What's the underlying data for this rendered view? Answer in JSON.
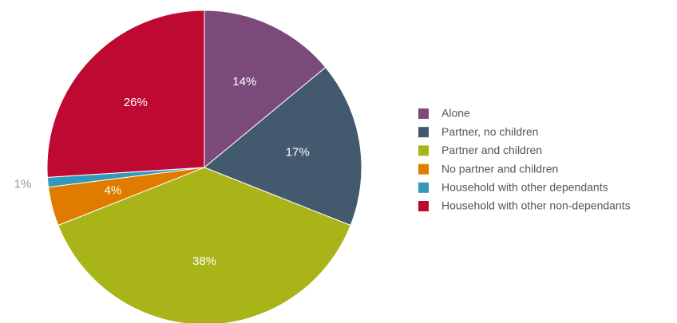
{
  "chart_data": {
    "type": "pie",
    "categories": [
      "Alone",
      "Partner, no children",
      "Partner and children",
      "No partner and children",
      "Household with other dependants",
      "Household with other non-dependants"
    ],
    "values": [
      14,
      17,
      38,
      4,
      1,
      26
    ],
    "value_labels": [
      "14%",
      "17%",
      "38%",
      "4%",
      "1%",
      "26%"
    ],
    "colors": [
      "#7c4a7a",
      "#435a6e",
      "#a9b418",
      "#e07b00",
      "#3399bb",
      "#be0a32"
    ],
    "legend": "right"
  }
}
